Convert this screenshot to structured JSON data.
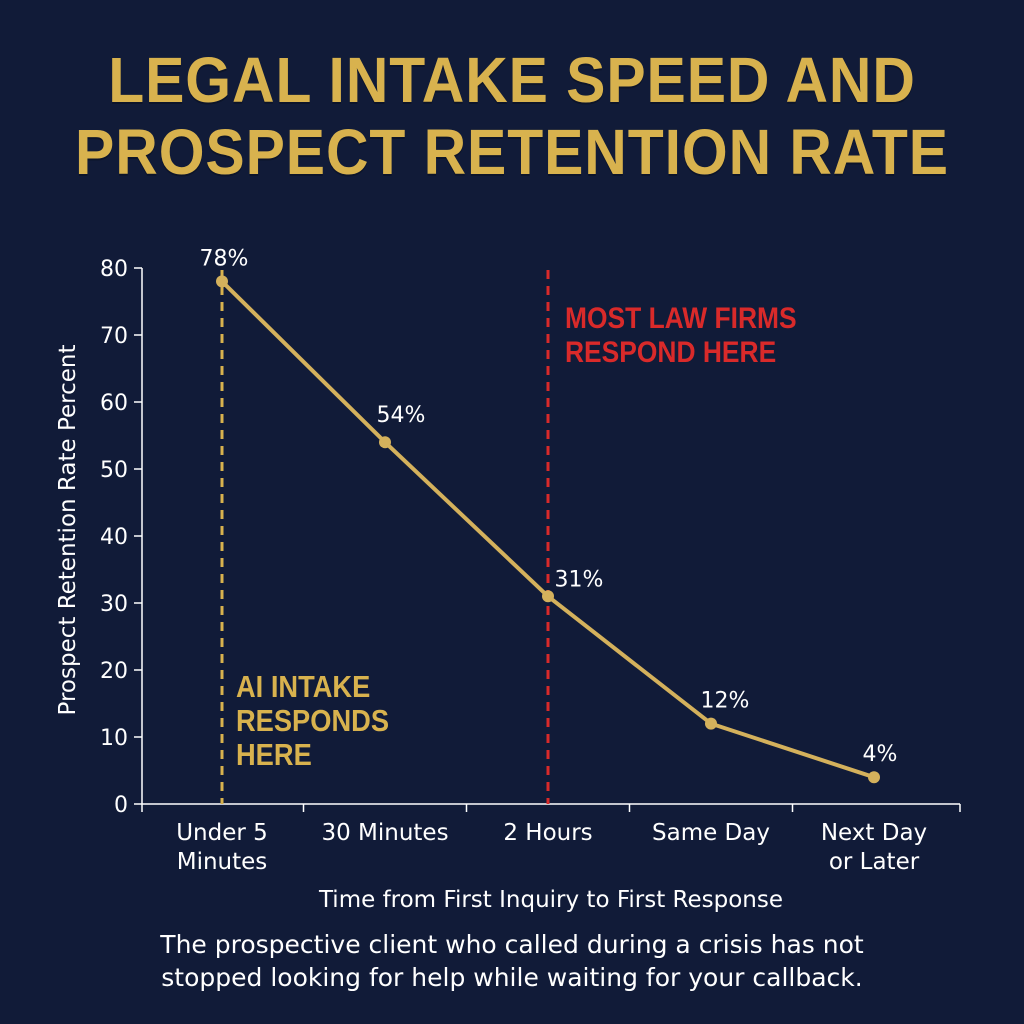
{
  "title": {
    "line1": "LEGAL INTAKE SPEED AND",
    "line2": "PROSPECT RETENTION RATE"
  },
  "caption": {
    "line1": "The prospective client who called during a crisis has not",
    "line2": "stopped looking for help while waiting for your callback."
  },
  "colors": {
    "background": "#111b38",
    "accent_gold": "#d8b24e",
    "line_gold": "#d4b15c",
    "alert_red": "#d92a2a",
    "axis": "#ffffff",
    "text": "#ffffff"
  },
  "chart_data": {
    "type": "line",
    "categories": [
      [
        "Under 5",
        "Minutes"
      ],
      [
        "30 Minutes"
      ],
      [
        "2 Hours"
      ],
      [
        "Same Day"
      ],
      [
        "Next Day",
        "or Later"
      ]
    ],
    "values": [
      78,
      54,
      31,
      12,
      4
    ],
    "data_labels": [
      "78%",
      "54%",
      "31%",
      "12%",
      "4%"
    ],
    "xlabel": "Time from First Inquiry to First Response",
    "ylabel": "Prospect Retention Rate Percent",
    "ylim": [
      0,
      80
    ],
    "yticks": [
      0,
      10,
      20,
      30,
      40,
      50,
      60,
      70,
      80
    ],
    "grid": false,
    "legend": "none",
    "reference_lines": [
      {
        "category_index": 0,
        "color": "#d8b24e",
        "style": "dashed",
        "label": [
          "AI INTAKE",
          "RESPONDS",
          "HERE"
        ]
      },
      {
        "category_index": 2,
        "color": "#d92a2a",
        "style": "dashed",
        "label": [
          "MOST LAW FIRMS",
          "RESPOND HERE"
        ]
      }
    ]
  }
}
